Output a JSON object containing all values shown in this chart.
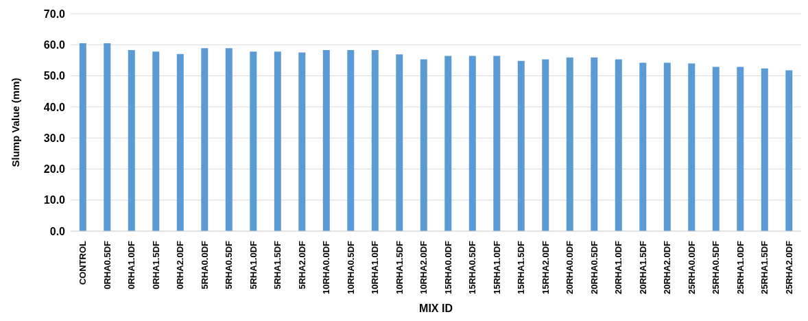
{
  "chart_data": {
    "type": "bar",
    "xlabel": "MIX ID",
    "ylabel": "Slump Value (mm)",
    "categories": [
      "CONTROL",
      "0RHA0.5DF",
      "0RHA1.0DF",
      "0RHA1.5DF",
      "0RHA2.0DF",
      "5RHA0.0DF",
      "5RHA0.5DF",
      "5RHA1.0DF",
      "5RHA1.5DF",
      "5RHA2.0DF",
      "10RHA0.0DF",
      "10RHA0.5DF",
      "10RHA1.0DF",
      "10RHA1.5DF",
      "10RHA2.0DF",
      "15RHA0.0DF",
      "15RHA0.5DF",
      "15RHA1.0DF",
      "15RHA1.5DF",
      "15RHA2.0DF",
      "20RHA0.0DF",
      "20RHA0.5DF",
      "20RHA1.0DF",
      "20RHA1.5DF",
      "20RHA2.0DF",
      "25RHA0.0DF",
      "25RHA0.5DF",
      "25RHA1.0DF",
      "25RHA1.5DF",
      "25RHA2.0DF"
    ],
    "values": [
      60.5,
      60.5,
      58.3,
      57.8,
      57.0,
      58.9,
      58.9,
      57.8,
      57.8,
      57.5,
      58.3,
      58.3,
      58.3,
      56.9,
      55.3,
      56.4,
      56.4,
      56.4,
      54.8,
      55.3,
      55.9,
      55.9,
      55.3,
      54.2,
      54.2,
      54.0,
      52.9,
      52.9,
      52.4,
      51.8
    ],
    "color": "#5b9bd5",
    "ylim": [
      0,
      70
    ],
    "yticks": [
      {
        "value": 0,
        "label": "0.0"
      },
      {
        "value": 10,
        "label": "10.0"
      },
      {
        "value": 20,
        "label": "20.0"
      },
      {
        "value": 30,
        "label": "30.0"
      },
      {
        "value": 40,
        "label": "40.0"
      },
      {
        "value": 50,
        "label": "50.0"
      },
      {
        "value": 60,
        "label": "60.0"
      },
      {
        "value": 70,
        "label": "70.0"
      }
    ],
    "grid": "y"
  }
}
